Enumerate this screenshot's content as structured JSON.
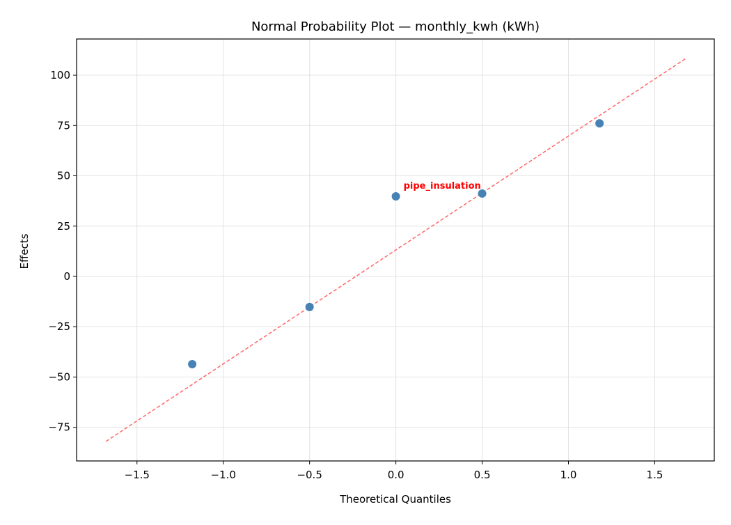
{
  "chart_data": {
    "type": "scatter",
    "title": "Normal Probability Plot — monthly_kwh (kWh)",
    "xlabel": "Theoretical Quantiles",
    "ylabel": "Effects",
    "xlim": [
      -1.85,
      1.845
    ],
    "ylim": [
      -91.7,
      118
    ],
    "xticks": [
      -1.5,
      -1.0,
      -0.5,
      0.0,
      0.5,
      1.0,
      1.5
    ],
    "xtick_labels": [
      "−1.5",
      "−1.0",
      "−0.5",
      "0.0",
      "0.5",
      "1.0",
      "1.5"
    ],
    "yticks": [
      -75,
      -50,
      -25,
      0,
      25,
      50,
      75,
      100
    ],
    "ytick_labels": [
      "−75",
      "−50",
      "−25",
      "0",
      "25",
      "50",
      "75",
      "100"
    ],
    "grid": true,
    "points": [
      {
        "x": -1.18,
        "y": -43.6
      },
      {
        "x": -0.5,
        "y": -15.2
      },
      {
        "x": 0.0,
        "y": 39.8
      },
      {
        "x": 0.5,
        "y": 41.2
      },
      {
        "x": 1.18,
        "y": 76.1
      }
    ],
    "reference_line": {
      "x": [
        -1.68,
        1.68
      ],
      "y": [
        -82.0,
        108.3
      ],
      "style": "dashed"
    },
    "annotations": [
      {
        "text": "pipe_insulation",
        "x": 0.0,
        "y": 39.8,
        "color": "#ff0000"
      }
    ],
    "colors": {
      "points": "#4682b4",
      "line": "#ff6666",
      "annotation": "#ff0000"
    }
  }
}
